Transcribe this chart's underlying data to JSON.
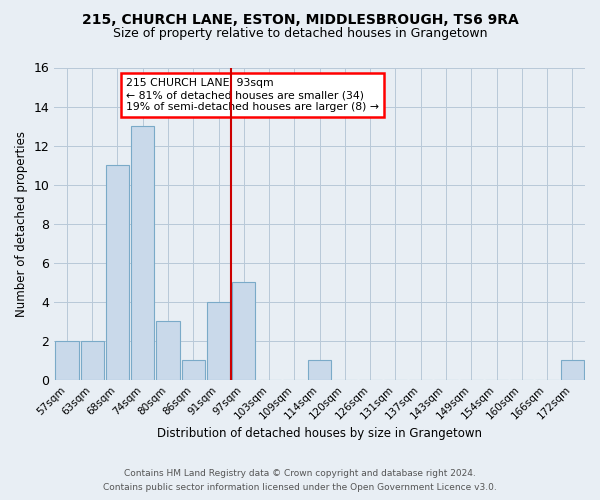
{
  "title1": "215, CHURCH LANE, ESTON, MIDDLESBROUGH, TS6 9RA",
  "title2": "Size of property relative to detached houses in Grangetown",
  "xlabel": "Distribution of detached houses by size in Grangetown",
  "ylabel": "Number of detached properties",
  "categories": [
    "57sqm",
    "63sqm",
    "68sqm",
    "74sqm",
    "80sqm",
    "86sqm",
    "91sqm",
    "97sqm",
    "103sqm",
    "109sqm",
    "114sqm",
    "120sqm",
    "126sqm",
    "131sqm",
    "137sqm",
    "143sqm",
    "149sqm",
    "154sqm",
    "160sqm",
    "166sqm",
    "172sqm"
  ],
  "values": [
    2,
    2,
    11,
    13,
    3,
    1,
    4,
    5,
    0,
    0,
    1,
    0,
    0,
    0,
    0,
    0,
    0,
    0,
    0,
    0,
    1
  ],
  "bar_color": "#c9d9ea",
  "bar_edge_color": "#7aaac8",
  "vline_index": 6.5,
  "vline_color": "#cc0000",
  "ylim": [
    0,
    16
  ],
  "yticks": [
    0,
    2,
    4,
    6,
    8,
    10,
    12,
    14,
    16
  ],
  "annotation_line1": "215 CHURCH LANE: 93sqm",
  "annotation_line2": "← 81% of detached houses are smaller (34)",
  "annotation_line3": "19% of semi-detached houses are larger (8) →",
  "footer1": "Contains HM Land Registry data © Crown copyright and database right 2024.",
  "footer2": "Contains public sector information licensed under the Open Government Licence v3.0.",
  "bg_color": "#e8eef4",
  "plot_bg_color": "#e8eef4",
  "grid_color": "#b8c8d8"
}
